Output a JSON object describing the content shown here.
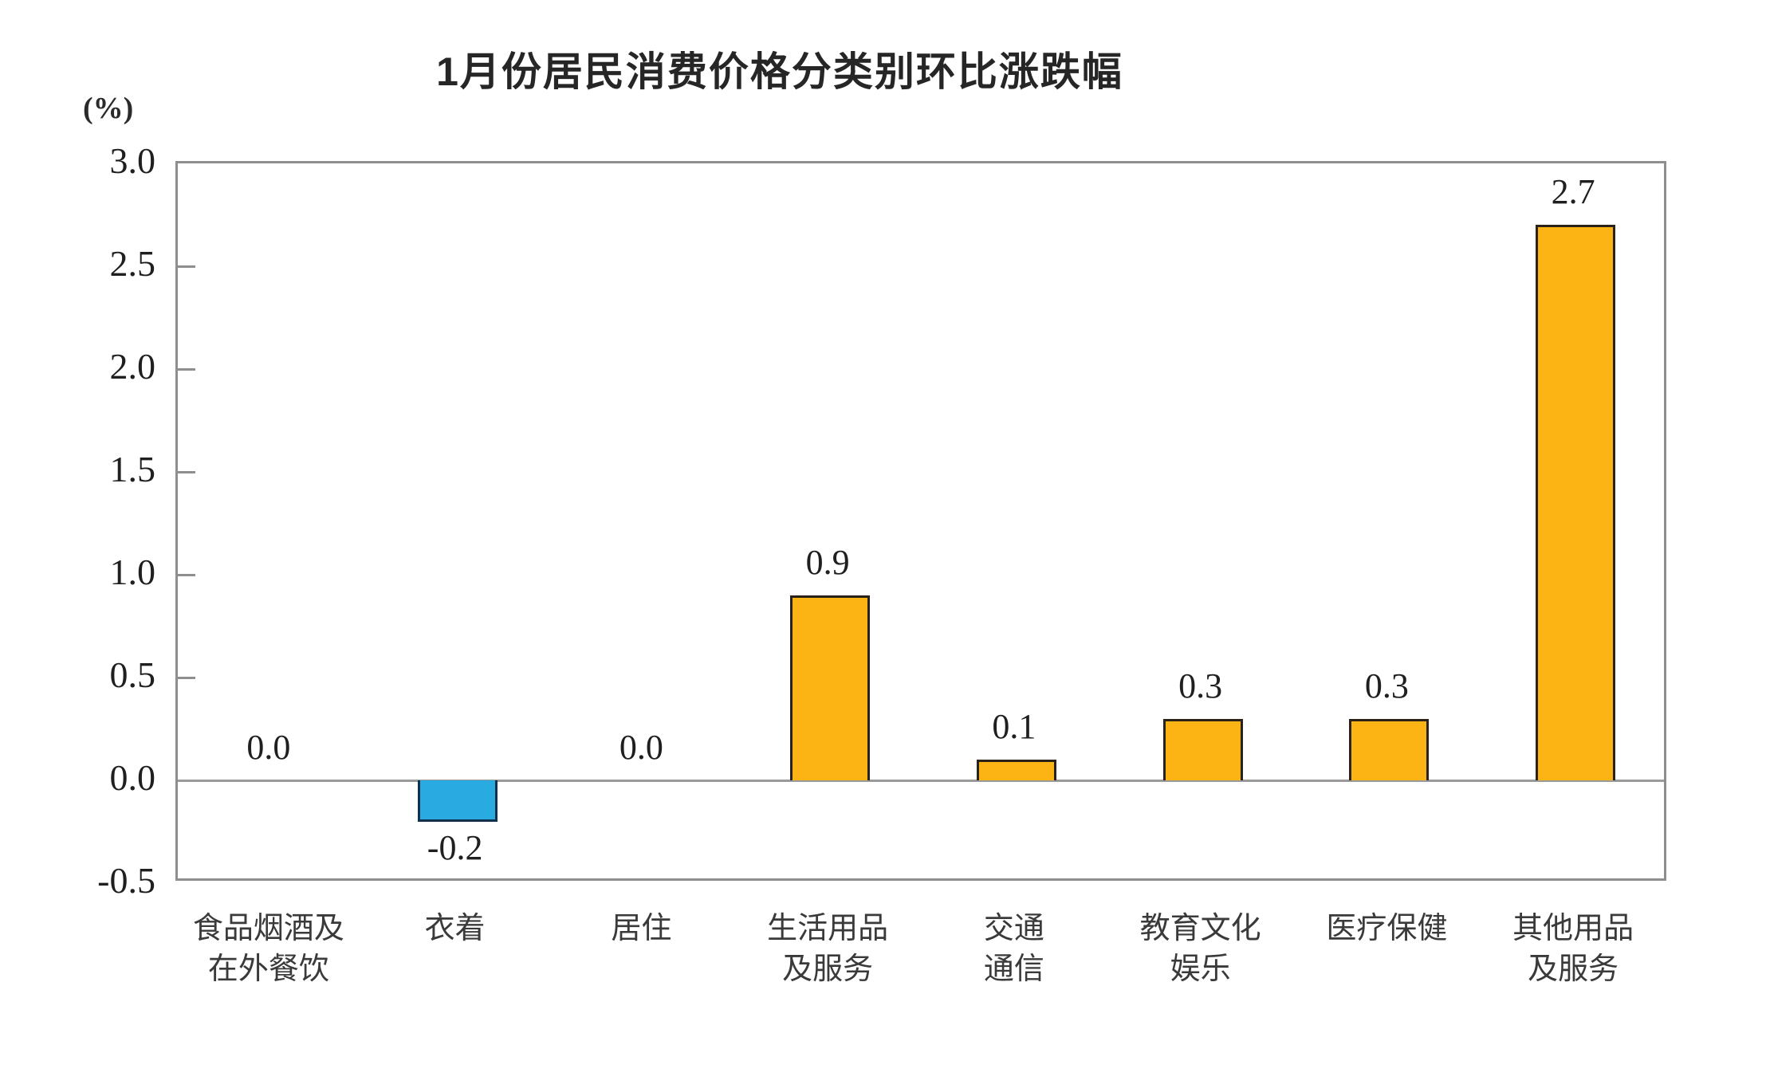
{
  "title_block": {
    "title": "1月份居民消费价格分类别环比涨跌幅",
    "unit_label": "(%)"
  },
  "colors": {
    "bar_positive_fill": "#FBB414",
    "bar_positive_border": "#2a2118",
    "bar_negative_fill": "#29ABE2",
    "bar_negative_border": "#10304b",
    "axis_gray": "#8e8e8e",
    "zero_line_gray": "#9a9a9a",
    "text_dark": "#1f1f1f"
  },
  "chart_data": {
    "type": "bar",
    "title": "1月份居民消费价格分类别环比涨跌幅",
    "ylabel": "(%)",
    "categories": [
      "食品烟酒及\n在外餐饮",
      "衣着",
      "居住",
      "生活用品\n及服务",
      "交通\n通信",
      "教育文化\n娱乐",
      "医疗保健",
      "其他用品\n及服务"
    ],
    "values": [
      0.0,
      -0.2,
      0.0,
      0.9,
      0.1,
      0.3,
      0.3,
      2.7
    ],
    "value_labels": [
      "0.0",
      "-0.2",
      "0.0",
      "0.9",
      "0.1",
      "0.3",
      "0.3",
      "2.7"
    ],
    "ytick_labels": [
      "3.0",
      "2.5",
      "2.0",
      "1.5",
      "1.0",
      "0.5",
      "0.0",
      "-0.5"
    ],
    "ylim": [
      -0.5,
      3.0
    ],
    "grid": false,
    "legend": false
  }
}
